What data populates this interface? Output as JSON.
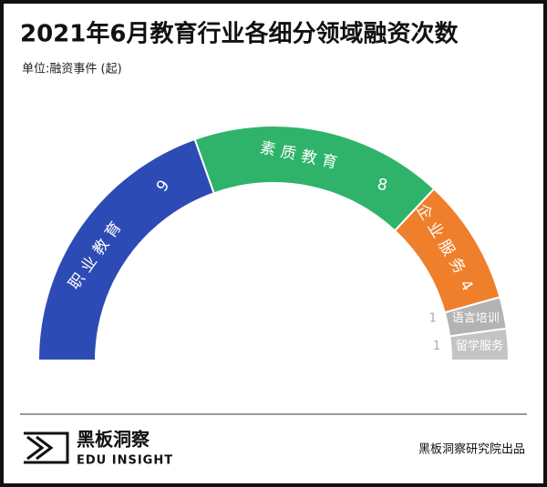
{
  "chart_data": {
    "type": "half-donut",
    "title": "2021年6月教育行业各细分领域融资次数",
    "subtitle": "单位:融资事件 (起)",
    "categories": [
      "职业教育",
      "素质教育",
      "企业服务",
      "语言培训",
      "留学服务"
    ],
    "values": [
      9,
      8,
      4,
      1,
      1
    ],
    "colors": [
      "#2d4bb4",
      "#2fb36b",
      "#ef7f2b",
      "#b3b3b3",
      "#c4c4c4"
    ]
  },
  "footer": {
    "brand": "黑板洞察",
    "brand_en": "EDU INSIGHT",
    "credit": "黑板洞察研究院出品"
  }
}
